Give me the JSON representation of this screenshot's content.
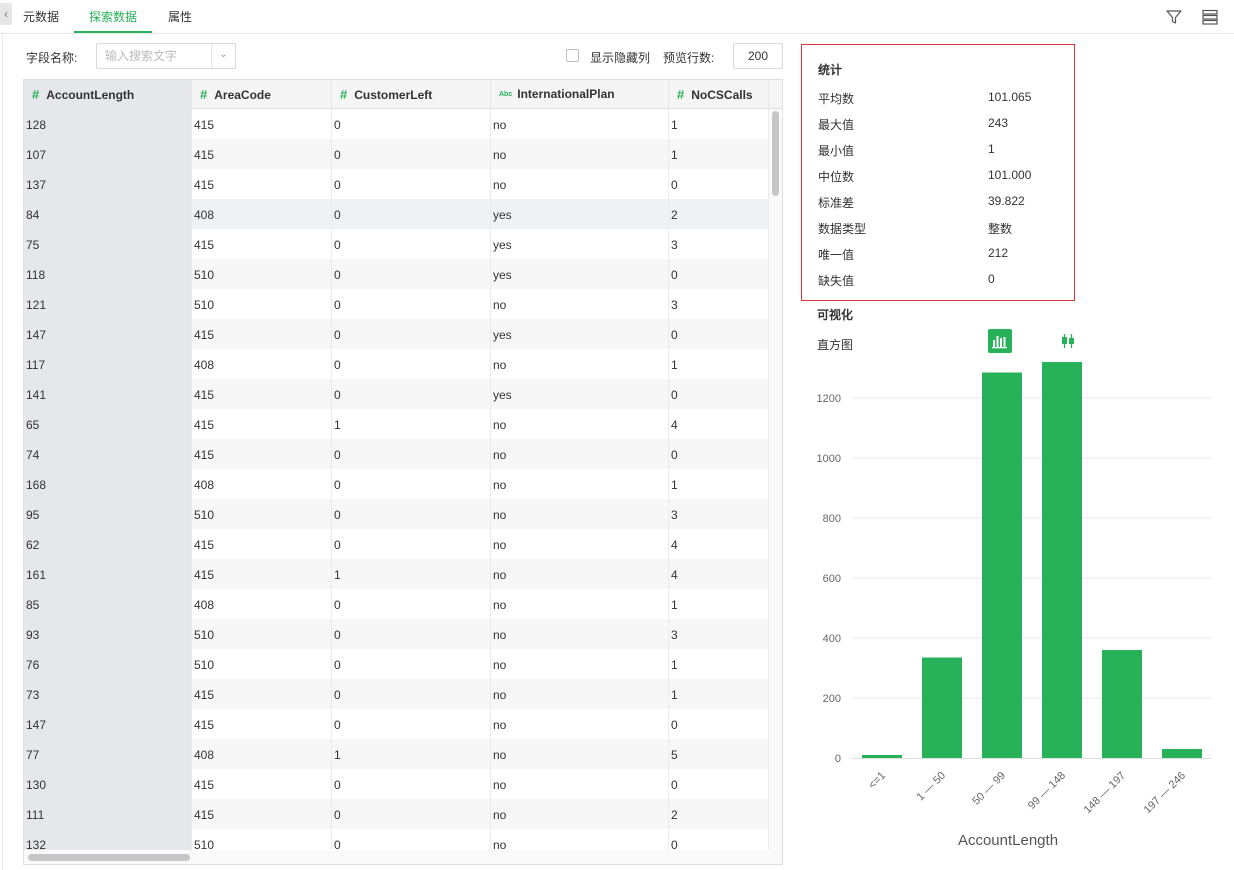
{
  "tabs": [
    {
      "label": "元数据",
      "active": false
    },
    {
      "label": "探索数据",
      "active": true
    },
    {
      "label": "属性",
      "active": false
    }
  ],
  "toolbar_icons": [
    "filter-icon",
    "list-settings-icon"
  ],
  "filter": {
    "field_label": "字段名称:",
    "search_placeholder": "输入搜索文字",
    "show_hidden_label": "显示隐藏列",
    "show_hidden_checked": false,
    "preview_rows_label": "预览行数:",
    "preview_rows_value": "200"
  },
  "table": {
    "columns": [
      {
        "name": "AccountLength",
        "type_icon": "#"
      },
      {
        "name": "AreaCode",
        "type_icon": "#"
      },
      {
        "name": "CustomerLeft",
        "type_icon": "#"
      },
      {
        "name": "InternationalPlan",
        "type_icon": "Abc"
      },
      {
        "name": "NoCSCalls",
        "type_icon": "#"
      }
    ],
    "rows": [
      [
        "128",
        "415",
        "0",
        "no",
        "1"
      ],
      [
        "107",
        "415",
        "0",
        "no",
        "1"
      ],
      [
        "137",
        "415",
        "0",
        "no",
        "0"
      ],
      [
        "84",
        "408",
        "0",
        "yes",
        "2"
      ],
      [
        "75",
        "415",
        "0",
        "yes",
        "3"
      ],
      [
        "118",
        "510",
        "0",
        "yes",
        "0"
      ],
      [
        "121",
        "510",
        "0",
        "no",
        "3"
      ],
      [
        "147",
        "415",
        "0",
        "yes",
        "0"
      ],
      [
        "117",
        "408",
        "0",
        "no",
        "1"
      ],
      [
        "141",
        "415",
        "0",
        "yes",
        "0"
      ],
      [
        "65",
        "415",
        "1",
        "no",
        "4"
      ],
      [
        "74",
        "415",
        "0",
        "no",
        "0"
      ],
      [
        "168",
        "408",
        "0",
        "no",
        "1"
      ],
      [
        "95",
        "510",
        "0",
        "no",
        "3"
      ],
      [
        "62",
        "415",
        "0",
        "no",
        "4"
      ],
      [
        "161",
        "415",
        "1",
        "no",
        "4"
      ],
      [
        "85",
        "408",
        "0",
        "no",
        "1"
      ],
      [
        "93",
        "510",
        "0",
        "no",
        "3"
      ],
      [
        "76",
        "510",
        "0",
        "no",
        "1"
      ],
      [
        "73",
        "415",
        "0",
        "no",
        "1"
      ],
      [
        "147",
        "415",
        "0",
        "no",
        "0"
      ],
      [
        "77",
        "408",
        "1",
        "no",
        "5"
      ],
      [
        "130",
        "415",
        "0",
        "no",
        "0"
      ],
      [
        "111",
        "415",
        "0",
        "no",
        "2"
      ],
      [
        "132",
        "510",
        "0",
        "no",
        "0"
      ]
    ]
  },
  "stats": {
    "title": "统计",
    "items": [
      {
        "label": "平均数",
        "value": "101.065"
      },
      {
        "label": "最大值",
        "value": "243"
      },
      {
        "label": "最小值",
        "value": "1"
      },
      {
        "label": "中位数",
        "value": "101.000"
      },
      {
        "label": "标准差",
        "value": "39.822"
      },
      {
        "label": "数据类型",
        "value": "整数"
      },
      {
        "label": "唯一值",
        "value": "212"
      },
      {
        "label": "缺失值",
        "value": "0"
      }
    ]
  },
  "visual": {
    "title": "可视化",
    "histogram_label": "直方图",
    "buttons": [
      {
        "icon": "bar-chart-icon",
        "active": true
      },
      {
        "icon": "boxplot-icon",
        "active": false
      }
    ]
  },
  "chart_data": {
    "type": "bar",
    "categories": [
      "<=1",
      "1 — 50",
      "50 — 99",
      "99 — 148",
      "148 — 197",
      "197 — 246"
    ],
    "values": [
      10,
      335,
      1285,
      1320,
      360,
      30
    ],
    "title": "",
    "xlabel": "AccountLength",
    "ylabel": "",
    "ylim": [
      0,
      1300
    ],
    "yticks": [
      0,
      200,
      400,
      600,
      800,
      1000,
      1200
    ],
    "grid": true,
    "bar_color": "#27b159"
  },
  "colors": {
    "accent": "#27b159",
    "highlight_border": "#d9363e"
  }
}
